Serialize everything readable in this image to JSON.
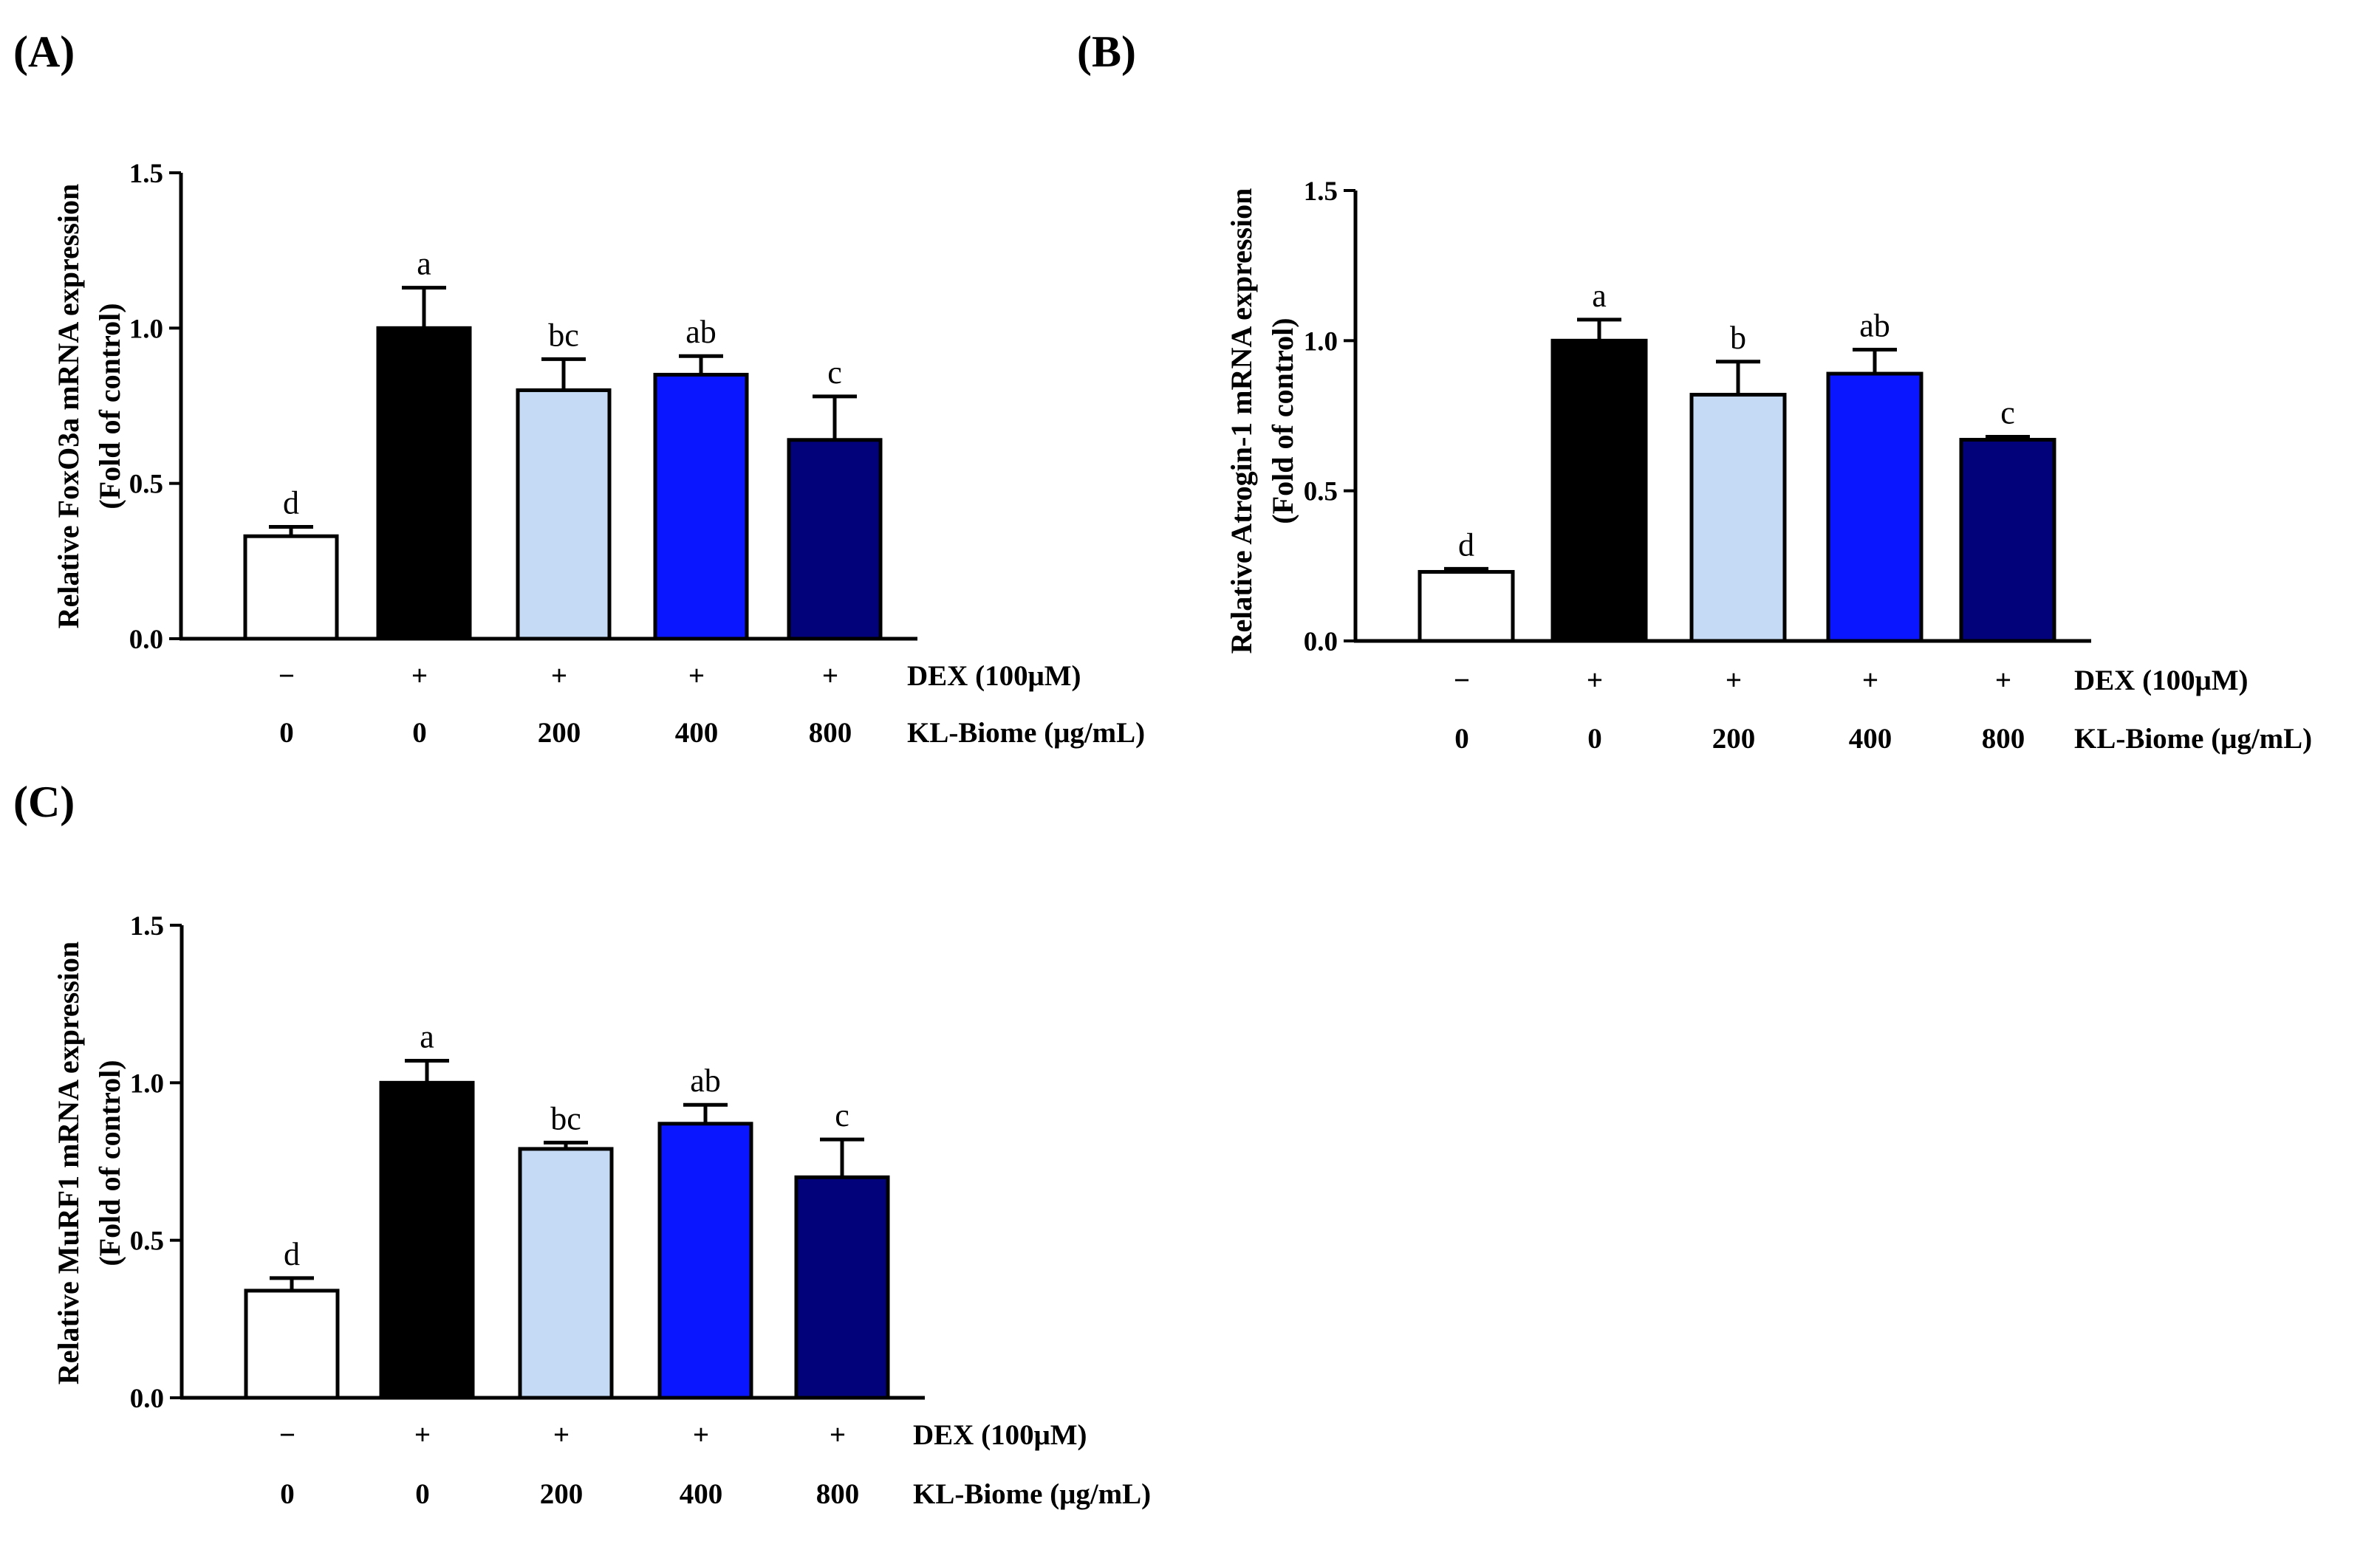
{
  "chart_data": [
    {
      "type": "bar",
      "panel_label": "(A)",
      "ylabel_line1": "Relative FoxO3a mRNA expression",
      "ylabel_line2": "(Fold of control)",
      "ylim": [
        0,
        1.5
      ],
      "yticks": [
        "0.0",
        "0.5",
        "1.0",
        "1.5"
      ],
      "row1_label": "DEX (100μM)",
      "row2_label": "KL-Biome (μg/mL)",
      "dex": [
        "−",
        "+",
        "+",
        "+",
        "+"
      ],
      "kl_biome": [
        "0",
        "0",
        "200",
        "400",
        "800"
      ],
      "values": [
        0.33,
        1.0,
        0.8,
        0.85,
        0.64
      ],
      "errors": [
        0.03,
        0.13,
        0.1,
        0.06,
        0.14
      ],
      "sig_labels": [
        "d",
        "a",
        "bc",
        "ab",
        "c"
      ],
      "colors": [
        "#ffffff",
        "#000000",
        "#c5daf5",
        "#0a16ff",
        "#02027a"
      ]
    },
    {
      "type": "bar",
      "panel_label": "(B)",
      "ylabel_line1": "Relative Atrogin-1 mRNA expression",
      "ylabel_line2": "(Fold of control)",
      "ylim": [
        0,
        1.5
      ],
      "yticks": [
        "0.0",
        "0.5",
        "1.0",
        "1.5"
      ],
      "row1_label": "DEX (100μM)",
      "row2_label": "KL-Biome (μg/mL)",
      "dex": [
        "−",
        "+",
        "+",
        "+",
        "+"
      ],
      "kl_biome": [
        "0",
        "0",
        "200",
        "400",
        "800"
      ],
      "values": [
        0.23,
        1.0,
        0.82,
        0.89,
        0.67
      ],
      "errors": [
        0.01,
        0.07,
        0.11,
        0.08,
        0.01
      ],
      "sig_labels": [
        "d",
        "a",
        "b",
        "ab",
        "c"
      ],
      "colors": [
        "#ffffff",
        "#000000",
        "#c5daf5",
        "#0a16ff",
        "#02027a"
      ]
    },
    {
      "type": "bar",
      "panel_label": "(C)",
      "ylabel_line1": "Relative MuRF1 mRNA expression",
      "ylabel_line2": "(Fold of control)",
      "ylim": [
        0,
        1.5
      ],
      "yticks": [
        "0.0",
        "0.5",
        "1.0",
        "1.5"
      ],
      "row1_label": "DEX (100μM)",
      "row2_label": "KL-Biome (μg/mL)",
      "dex": [
        "−",
        "+",
        "+",
        "+",
        "+"
      ],
      "kl_biome": [
        "0",
        "0",
        "200",
        "400",
        "800"
      ],
      "values": [
        0.34,
        1.0,
        0.79,
        0.87,
        0.7
      ],
      "errors": [
        0.04,
        0.07,
        0.02,
        0.06,
        0.12
      ],
      "sig_labels": [
        "d",
        "a",
        "bc",
        "ab",
        "c"
      ],
      "colors": [
        "#ffffff",
        "#000000",
        "#c5daf5",
        "#0a16ff",
        "#02027a"
      ]
    }
  ]
}
